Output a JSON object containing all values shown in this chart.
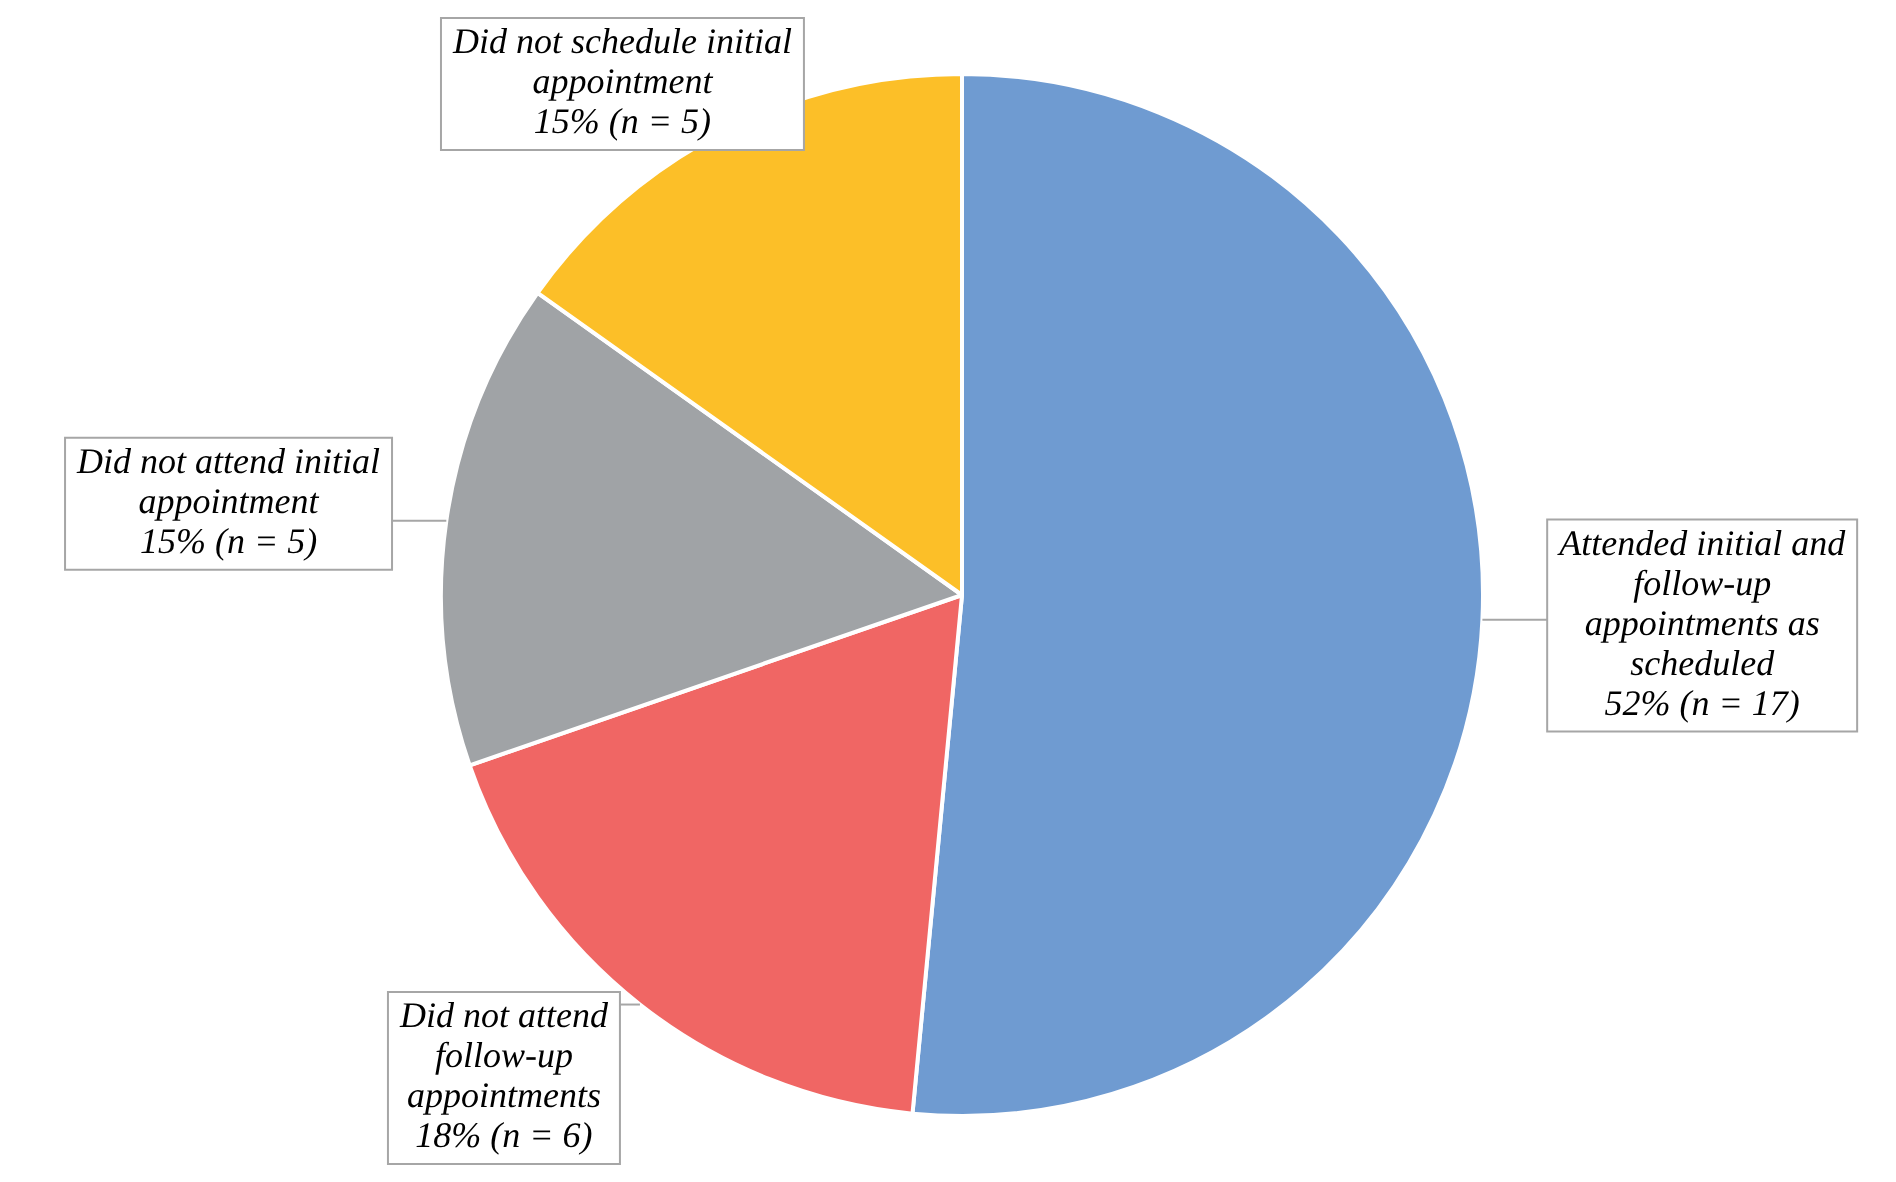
{
  "chart_data": {
    "type": "pie",
    "categories": [
      "Attended initial and follow-up appointments as scheduled",
      "Did not attend follow-up appointments",
      "Did not attend initial appointment",
      "Did not schedule initial appointment"
    ],
    "values": [
      17,
      6,
      5,
      5
    ],
    "value_labels": [
      "52% (n = 17)",
      "18% (n = 6)",
      "15% (n = 5)",
      "15% (n = 5)"
    ],
    "colors": [
      "#6f9bd1",
      "#f06664",
      "#a0a3a6",
      "#fcbf28"
    ],
    "legend": false
  }
}
